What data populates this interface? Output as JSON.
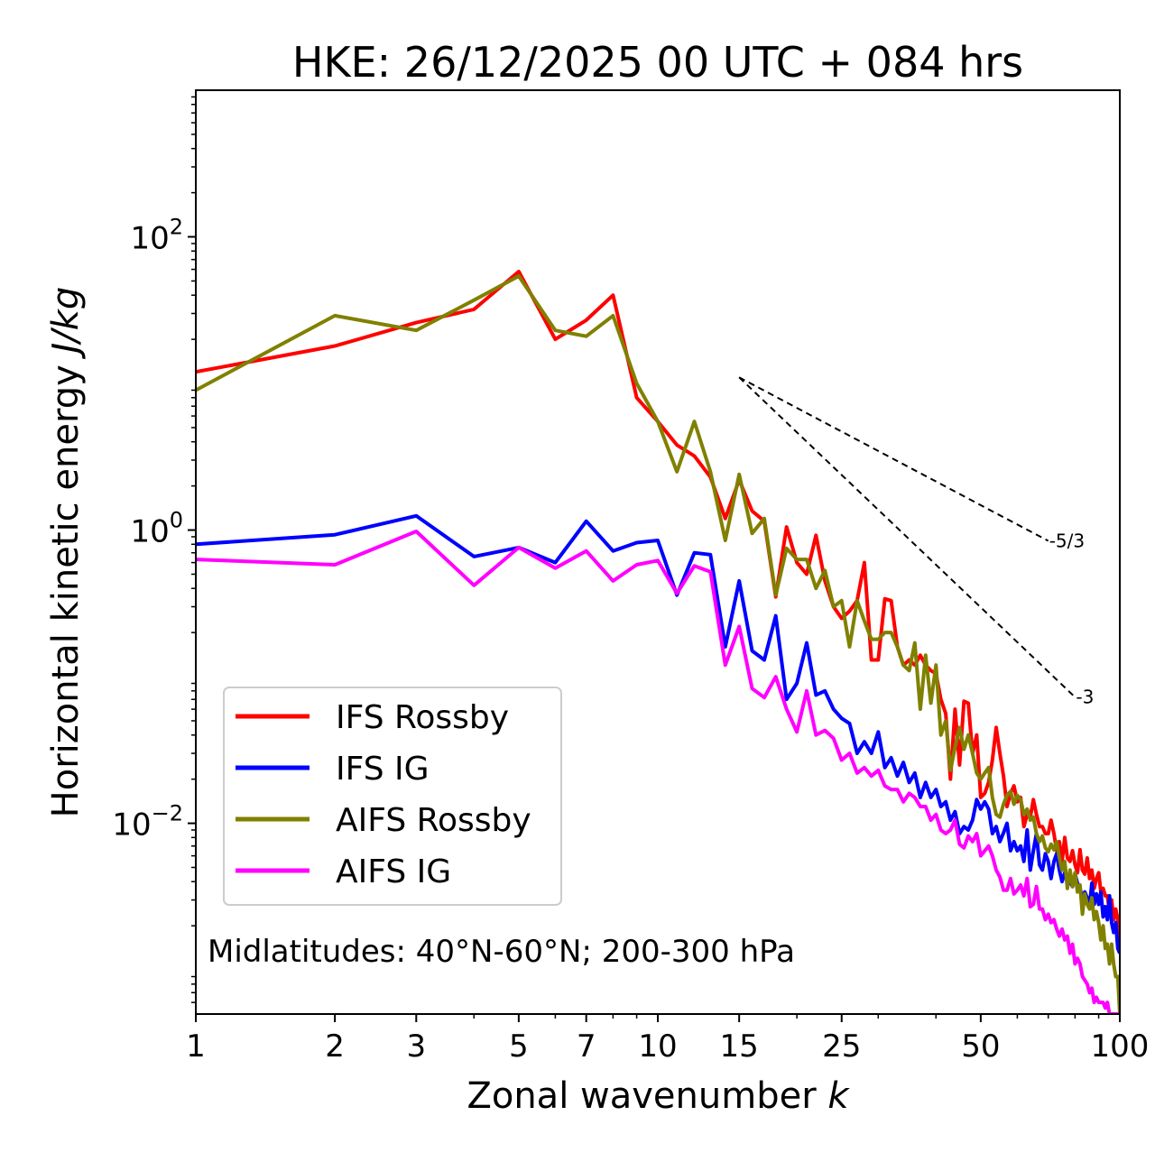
{
  "chart_data": {
    "type": "line",
    "title": "HKE: 26/12/2025 00 UTC + 084 hrs",
    "xlabel": "Zonal wavenumber",
    "xlabel_var": "k",
    "ylabel": "Horizontal kinetic energy",
    "ylabel_units": "J/kg",
    "xscale": "log",
    "yscale": "log",
    "xlim": [
      1,
      100
    ],
    "ylim": [
      0.0005,
      1000
    ],
    "x_ticks": [
      1,
      2,
      3,
      5,
      7,
      10,
      15,
      25,
      50,
      100
    ],
    "x_tick_labels": [
      "1",
      "2",
      "3",
      "5",
      "7",
      "10",
      "15",
      "25",
      "50",
      "100"
    ],
    "y_ticks": [
      {
        "value": 0.01,
        "base": "10",
        "exp": "−2"
      },
      {
        "value": 1,
        "base": "10",
        "exp": "0"
      },
      {
        "value": 100,
        "base": "10",
        "exp": "2"
      }
    ],
    "annotation": "Midlatitudes: 40°N-60°N; 200-300 hPa",
    "legend_position": "lower-left",
    "slope_lines": [
      {
        "label": "-5/3",
        "slope": -1.6667,
        "x_start": 15,
        "y_start": 11,
        "x_end": 70
      },
      {
        "label": "-3",
        "slope": -3,
        "x_start": 15,
        "y_start": 11,
        "x_end": 80
      }
    ],
    "series": [
      {
        "name": "IFS Rossby",
        "color": "#ff0000",
        "x": [
          1,
          2,
          3,
          4,
          5,
          6,
          7,
          8,
          9,
          10,
          11,
          12,
          13,
          14,
          15,
          16,
          17,
          18,
          19,
          20,
          21,
          22,
          23,
          24,
          25,
          26,
          27,
          28,
          29,
          30,
          31,
          32,
          33,
          34,
          35,
          36,
          37,
          38,
          39,
          40,
          41,
          42,
          43,
          44,
          45,
          46,
          47,
          48,
          49,
          50,
          51,
          52,
          53,
          54,
          55,
          56,
          57,
          58,
          59,
          60,
          61,
          62,
          63,
          64,
          65,
          66,
          67,
          68,
          69,
          70,
          71,
          72,
          73,
          74,
          75,
          76,
          77,
          78,
          79,
          80,
          81,
          82,
          83,
          84,
          85,
          86,
          87,
          88,
          89,
          90,
          91,
          92,
          93,
          94,
          95,
          96,
          97,
          98,
          99,
          100
        ],
        "y": [
          12,
          18,
          26,
          32,
          58,
          20,
          27,
          40,
          8,
          5.5,
          3.8,
          3.2,
          2.3,
          1.2,
          2.2,
          1.35,
          1.15,
          0.35,
          1.05,
          0.6,
          0.5,
          0.92,
          0.45,
          0.3,
          0.25,
          0.28,
          0.33,
          0.6,
          0.13,
          0.13,
          0.34,
          0.33,
          0.16,
          0.12,
          0.13,
          0.12,
          0.14,
          0.12,
          0.11,
          0.105,
          0.07,
          0.056,
          0.02,
          0.06,
          0.025,
          0.068,
          0.066,
          0.03,
          0.04,
          0.015,
          0.016,
          0.019,
          0.027,
          0.045,
          0.03,
          0.021,
          0.013,
          0.016,
          0.018,
          0.014,
          0.015,
          0.0095,
          0.0115,
          0.011,
          0.0145,
          0.0115,
          0.0095,
          0.0095,
          0.0085,
          0.0085,
          0.0105,
          0.0085,
          0.0065,
          0.0075,
          0.0055,
          0.008,
          0.0058,
          0.0055,
          0.0065,
          0.0052,
          0.0046,
          0.0066,
          0.0048,
          0.0045,
          0.0058,
          0.0042,
          0.0048,
          0.0036,
          0.0042,
          0.0046,
          0.0034,
          0.0036,
          0.0032,
          0.0032,
          0.0025,
          0.003,
          0.0022,
          0.0026,
          0.0022,
          0.0016
        ]
      },
      {
        "name": "IFS IG",
        "color": "#0000ff",
        "x": [
          1,
          2,
          3,
          4,
          5,
          6,
          7,
          8,
          9,
          10,
          11,
          12,
          13,
          14,
          15,
          16,
          17,
          18,
          19,
          20,
          21,
          22,
          23,
          24,
          25,
          26,
          27,
          28,
          29,
          30,
          31,
          32,
          33,
          34,
          35,
          36,
          37,
          38,
          39,
          40,
          41,
          42,
          43,
          44,
          45,
          46,
          47,
          48,
          49,
          50,
          51,
          52,
          53,
          54,
          55,
          56,
          57,
          58,
          59,
          60,
          61,
          62,
          63,
          64,
          65,
          66,
          67,
          68,
          69,
          70,
          71,
          72,
          73,
          74,
          75,
          76,
          77,
          78,
          79,
          80,
          81,
          82,
          83,
          84,
          85,
          86,
          87,
          88,
          89,
          90,
          91,
          92,
          93,
          94,
          95,
          96,
          97,
          98,
          99,
          100
        ],
        "y": [
          0.8,
          0.93,
          1.25,
          0.66,
          0.76,
          0.6,
          1.15,
          0.72,
          0.82,
          0.85,
          0.36,
          0.7,
          0.68,
          0.16,
          0.45,
          0.15,
          0.13,
          0.26,
          0.07,
          0.09,
          0.17,
          0.075,
          0.08,
          0.06,
          0.052,
          0.048,
          0.03,
          0.036,
          0.03,
          0.042,
          0.024,
          0.028,
          0.021,
          0.026,
          0.019,
          0.022,
          0.015,
          0.019,
          0.015,
          0.017,
          0.013,
          0.014,
          0.0105,
          0.012,
          0.0085,
          0.0095,
          0.009,
          0.0105,
          0.0145,
          0.0125,
          0.014,
          0.0125,
          0.0085,
          0.0095,
          0.0075,
          0.0086,
          0.01,
          0.0065,
          0.0075,
          0.0065,
          0.007,
          0.0055,
          0.009,
          0.0048,
          0.0065,
          0.0085,
          0.0052,
          0.0048,
          0.0062,
          0.0055,
          0.0042,
          0.0055,
          0.0062,
          0.0048,
          0.004,
          0.0046,
          0.0042,
          0.004,
          0.0037,
          0.0045,
          0.0039,
          0.0036,
          0.0031,
          0.0034,
          0.0031,
          0.0027,
          0.0039,
          0.0028,
          0.0033,
          0.0028,
          0.0034,
          0.0023,
          0.0027,
          0.0022,
          0.0032,
          0.0021,
          0.0018,
          0.0021,
          0.0014,
          0.0013
        ]
      },
      {
        "name": "AIFS Rossby",
        "color": "#808000",
        "x": [
          1,
          2,
          3,
          4,
          5,
          6,
          7,
          8,
          9,
          10,
          11,
          12,
          13,
          14,
          15,
          16,
          17,
          18,
          19,
          20,
          21,
          22,
          23,
          24,
          25,
          26,
          27,
          28,
          29,
          30,
          31,
          32,
          33,
          34,
          35,
          36,
          37,
          38,
          39,
          40,
          41,
          42,
          43,
          44,
          45,
          46,
          47,
          48,
          49,
          50,
          51,
          52,
          53,
          54,
          55,
          56,
          57,
          58,
          59,
          60,
          61,
          62,
          63,
          64,
          65,
          66,
          67,
          68,
          69,
          70,
          71,
          72,
          73,
          74,
          75,
          76,
          77,
          78,
          79,
          80,
          81,
          82,
          83,
          84,
          85,
          86,
          87,
          88,
          89,
          90,
          91,
          92,
          93,
          94,
          95,
          96,
          97,
          98,
          99,
          100
        ],
        "y": [
          9,
          29,
          23,
          37,
          54,
          23,
          21,
          29,
          10,
          5.5,
          2.5,
          5.5,
          2.5,
          0.85,
          2.4,
          0.95,
          1.2,
          0.36,
          0.75,
          0.63,
          0.63,
          0.4,
          0.53,
          0.3,
          0.33,
          0.16,
          0.33,
          0.24,
          0.18,
          0.18,
          0.2,
          0.2,
          0.16,
          0.12,
          0.11,
          0.17,
          0.06,
          0.14,
          0.066,
          0.12,
          0.04,
          0.05,
          0.023,
          0.033,
          0.045,
          0.032,
          0.04,
          0.03,
          0.022,
          0.02,
          0.022,
          0.024,
          0.015,
          0.0115,
          0.011,
          0.0135,
          0.0155,
          0.0165,
          0.0135,
          0.0155,
          0.0145,
          0.0115,
          0.0125,
          0.0105,
          0.011,
          0.0085,
          0.0075,
          0.0082,
          0.0068,
          0.0064,
          0.0072,
          0.0066,
          0.0075,
          0.0058,
          0.0048,
          0.0055,
          0.0036,
          0.0048,
          0.0037,
          0.0046,
          0.0034,
          0.0038,
          0.0024,
          0.0033,
          0.0028,
          0.0026,
          0.0031,
          0.0022,
          0.0025,
          0.0021,
          0.0016,
          0.002,
          0.0014,
          0.0015,
          0.0011,
          0.0015,
          0.0011,
          0.0009,
          0.0009,
          0.0005
        ]
      },
      {
        "name": "AIFS IG",
        "color": "#ff00ff",
        "x": [
          1,
          2,
          3,
          4,
          5,
          6,
          7,
          8,
          9,
          10,
          11,
          12,
          13,
          14,
          15,
          16,
          17,
          18,
          19,
          20,
          21,
          22,
          23,
          24,
          25,
          26,
          27,
          28,
          29,
          30,
          31,
          32,
          33,
          34,
          35,
          36,
          37,
          38,
          39,
          40,
          41,
          42,
          43,
          44,
          45,
          46,
          47,
          48,
          49,
          50,
          51,
          52,
          53,
          54,
          55,
          56,
          57,
          58,
          59,
          60,
          61,
          62,
          63,
          64,
          65,
          66,
          67,
          68,
          69,
          70,
          71,
          72,
          73,
          74,
          75,
          76,
          77,
          78,
          79,
          80,
          81,
          82,
          83,
          84,
          85,
          86,
          87,
          88,
          89,
          90,
          91,
          92,
          93,
          94,
          95,
          96,
          97,
          98,
          99,
          100
        ],
        "y": [
          0.63,
          0.58,
          0.98,
          0.42,
          0.76,
          0.55,
          0.72,
          0.45,
          0.58,
          0.62,
          0.37,
          0.57,
          0.52,
          0.12,
          0.22,
          0.083,
          0.072,
          0.1,
          0.06,
          0.042,
          0.08,
          0.04,
          0.043,
          0.038,
          0.027,
          0.03,
          0.022,
          0.024,
          0.021,
          0.023,
          0.018,
          0.017,
          0.017,
          0.014,
          0.016,
          0.015,
          0.013,
          0.013,
          0.0105,
          0.0115,
          0.009,
          0.0085,
          0.009,
          0.0105,
          0.0072,
          0.0068,
          0.0082,
          0.0075,
          0.0085,
          0.006,
          0.0065,
          0.007,
          0.006,
          0.0048,
          0.0043,
          0.0035,
          0.0035,
          0.0042,
          0.0033,
          0.0035,
          0.0038,
          0.0032,
          0.0042,
          0.0027,
          0.0028,
          0.0037,
          0.0026,
          0.0026,
          0.0022,
          0.0024,
          0.0021,
          0.0022,
          0.0019,
          0.0017,
          0.0019,
          0.0016,
          0.0017,
          0.0013,
          0.0015,
          0.0011,
          0.0012,
          0.0011,
          0.0009,
          0.00085,
          0.0008,
          0.0007,
          0.00075,
          0.0006,
          0.00065,
          0.0006,
          0.0006,
          0.0006,
          0.00055,
          0.0006,
          0.0005,
          0.0005,
          0.0005,
          0.0005,
          0.0005,
          0.0005
        ]
      }
    ]
  }
}
